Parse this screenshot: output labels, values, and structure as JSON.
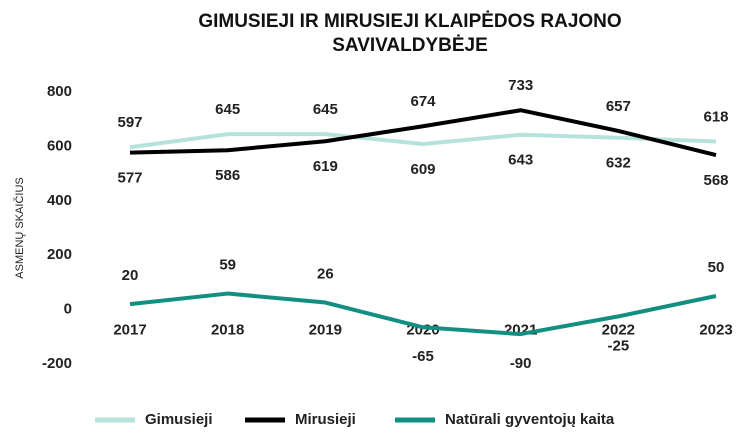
{
  "chart_data": {
    "type": "line",
    "title": [
      "GIMUSIEJI IR MIRUSIEJI KLAIPĖDOS RAJONO",
      "SAVIVALDYBĖJE"
    ],
    "y_label": "ASMENŲ SKAIČIUS",
    "categories": [
      "2017",
      "2018",
      "2019",
      "2020",
      "2021",
      "2022",
      "2023"
    ],
    "series": [
      {
        "name": "Gimusieji",
        "color": "#b5e2db",
        "values": [
          597,
          645,
          645,
          609,
          643,
          632,
          618
        ]
      },
      {
        "name": "Mirusieji",
        "color": "#000000",
        "values": [
          577,
          586,
          619,
          674,
          733,
          657,
          568
        ]
      },
      {
        "name": "Natūrali gyventojų kaita",
        "color": "#128f81",
        "values": [
          20,
          59,
          26,
          -65,
          -90,
          -25,
          50
        ]
      }
    ],
    "ylim": [
      -200,
      800
    ],
    "yticks": [
      -200,
      0,
      200,
      400,
      600,
      800
    ],
    "grid": false,
    "legend": "bottom"
  }
}
